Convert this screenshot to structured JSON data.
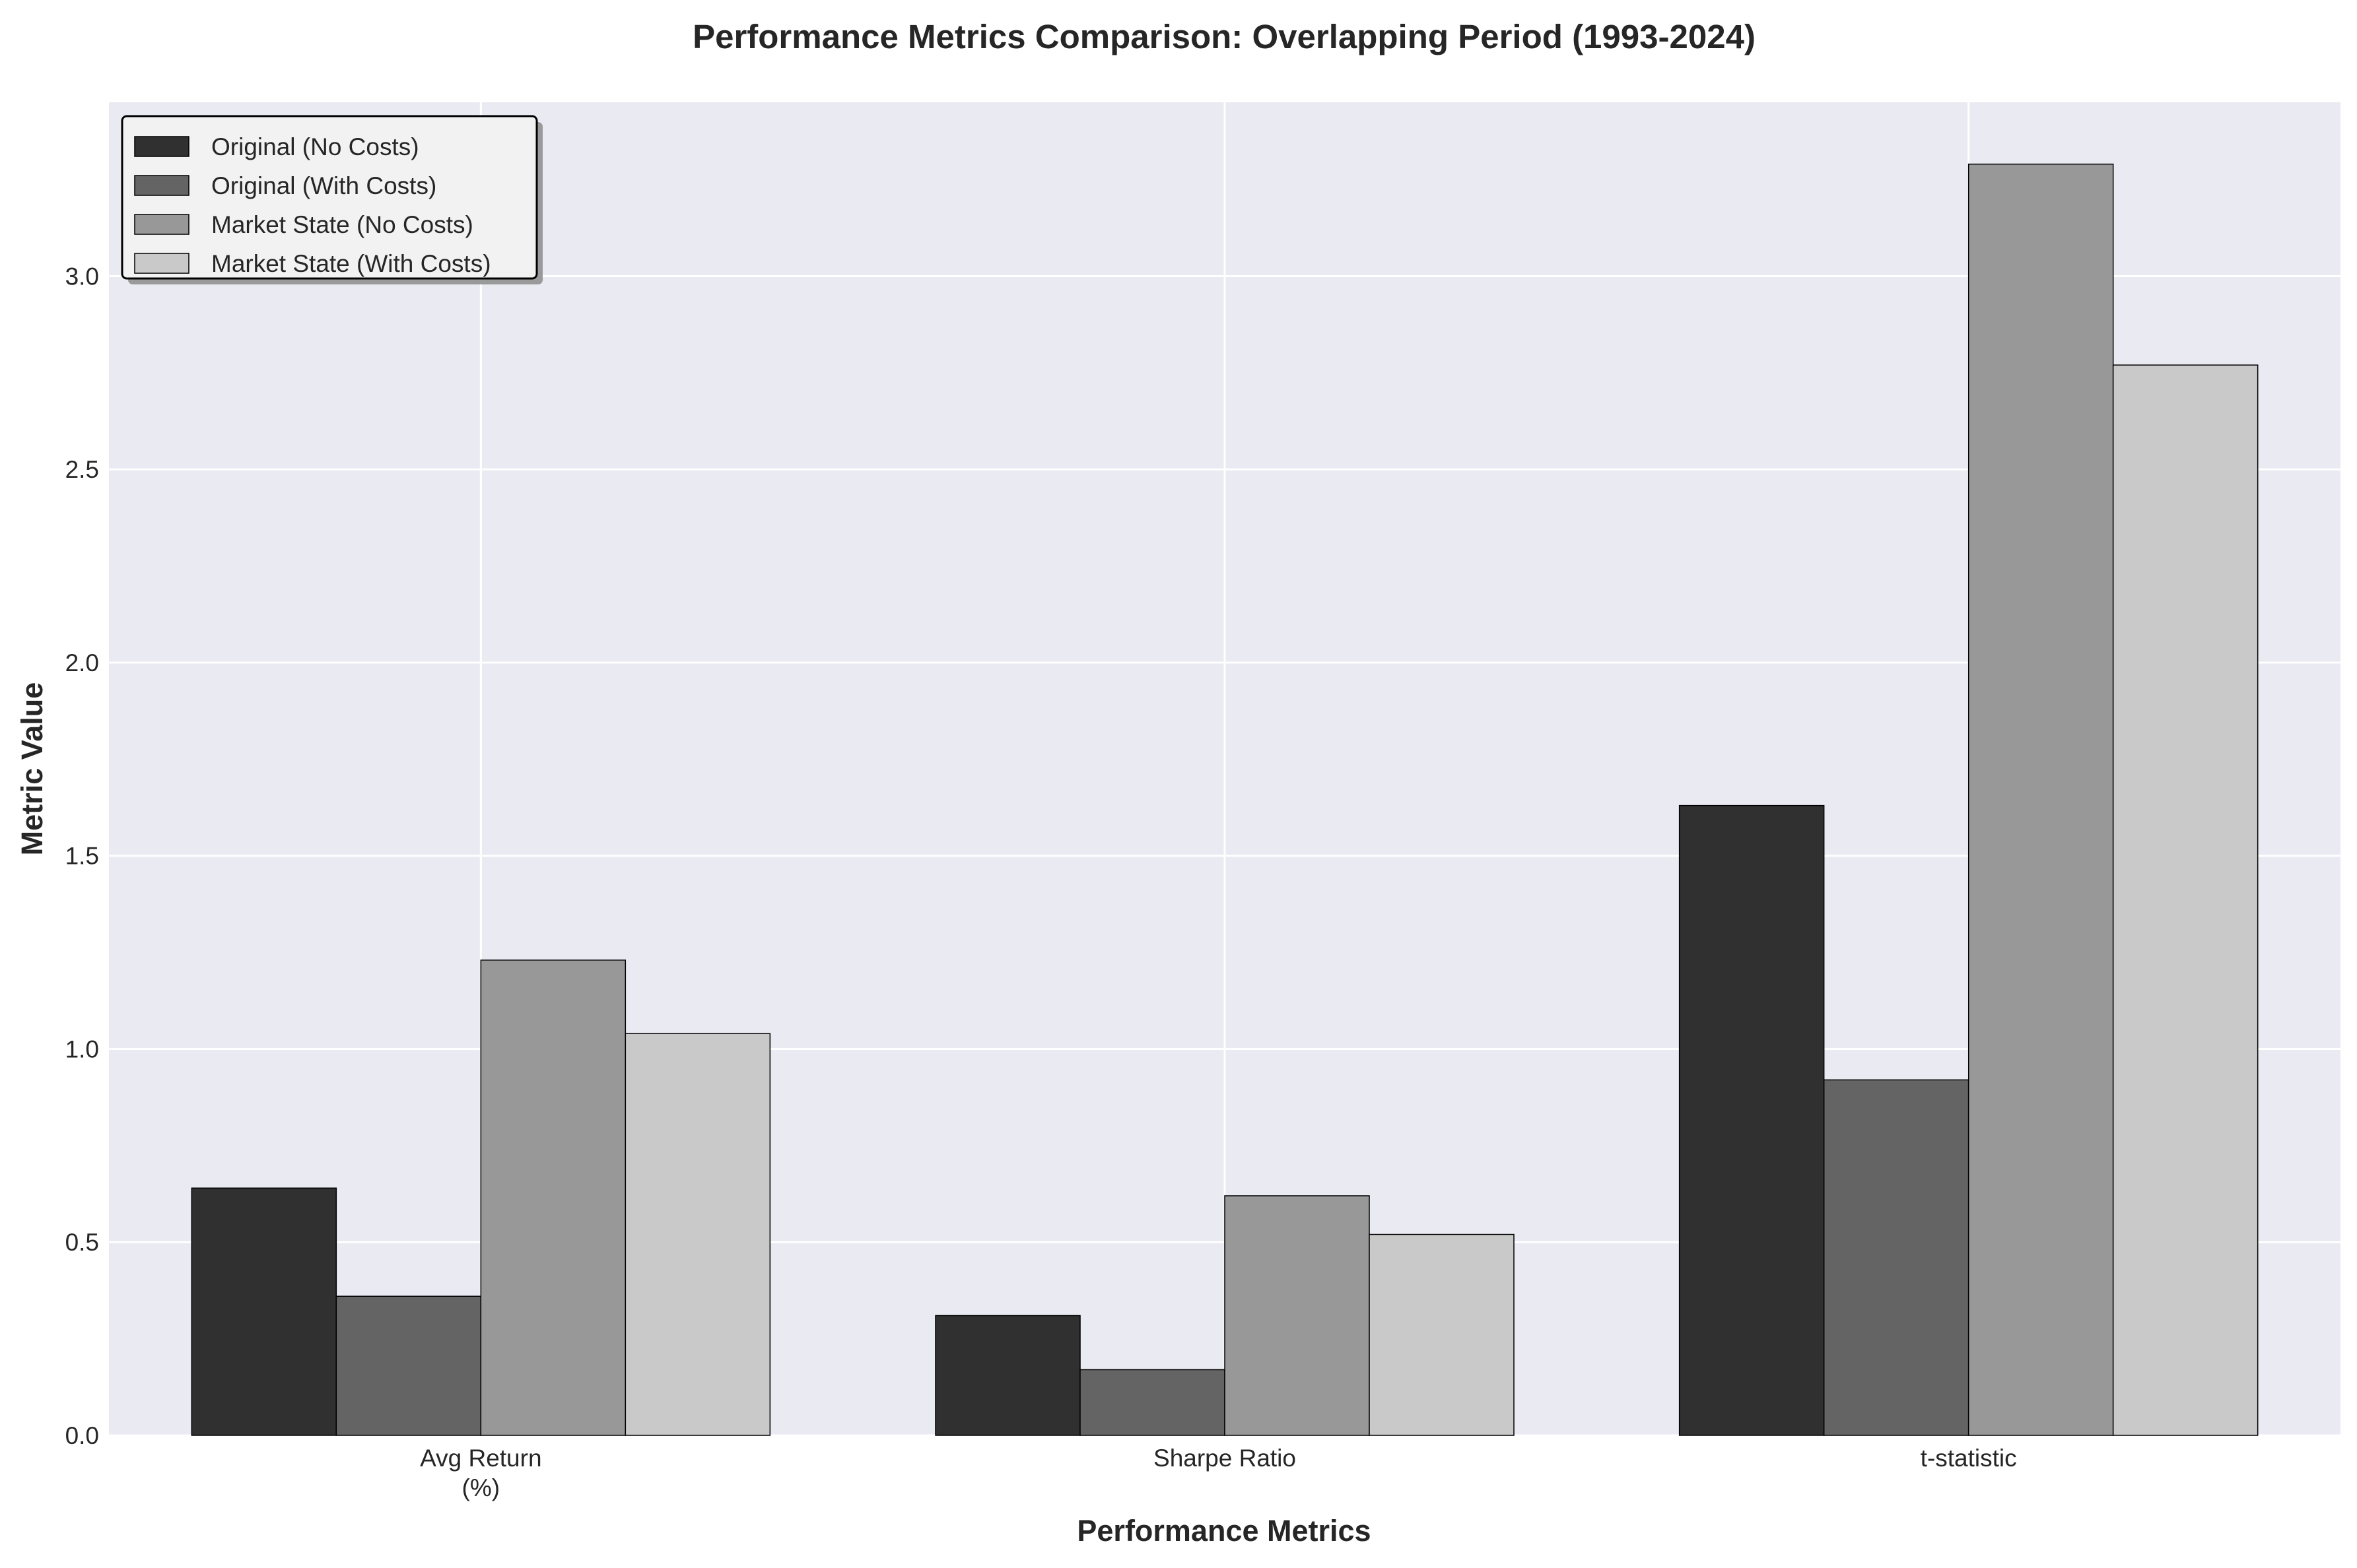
{
  "chart_data": {
    "type": "bar",
    "title": "Performance Metrics Comparison: Overlapping Period (1993-2024)",
    "xlabel": "Performance Metrics",
    "ylabel": "Metric Value",
    "categories": [
      [
        "Avg Return",
        "(%)"
      ],
      [
        "Sharpe Ratio"
      ],
      [
        "t-statistic"
      ]
    ],
    "series": [
      {
        "name": "Original (No Costs)",
        "values": [
          0.64,
          0.31,
          1.63
        ],
        "color": "#303030"
      },
      {
        "name": "Original (With Costs)",
        "values": [
          0.36,
          0.17,
          0.92
        ],
        "color": "#646464"
      },
      {
        "name": "Market State (No Costs)",
        "values": [
          1.23,
          0.62,
          3.29
        ],
        "color": "#989898"
      },
      {
        "name": "Market State (With Costs)",
        "values": [
          1.04,
          0.52,
          2.77
        ],
        "color": "#c9c9ca"
      }
    ],
    "ylim": [
      0,
      3.45
    ],
    "yticks": [
      "0.0",
      "0.5",
      "1.0",
      "1.5",
      "2.0",
      "2.5",
      "3.0"
    ],
    "grid": true,
    "legend_position": "top-left",
    "colors": {
      "plot_background": "#eaeaf2",
      "grid": "#ffffff",
      "bar_edge": "#000000"
    }
  }
}
